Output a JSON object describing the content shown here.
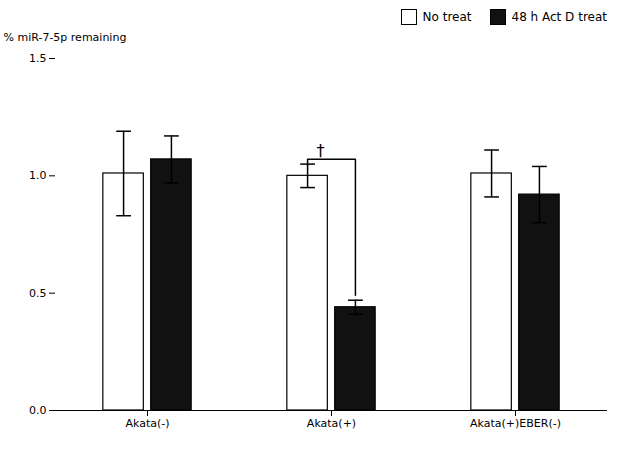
{
  "chart_data": {
    "type": "bar",
    "categories": [
      "Akata(-)",
      "Akata(+)",
      "Akata(+)EBER(-)"
    ],
    "series": [
      {
        "name": "No treat",
        "color": "#ffffff",
        "values": [
          1.01,
          1.0,
          1.01
        ],
        "errors": [
          0.18,
          0.05,
          0.1
        ]
      },
      {
        "name": "48 h Act D treat",
        "color": "#111111",
        "values": [
          1.07,
          0.44,
          0.92
        ],
        "errors": [
          0.1,
          0.03,
          0.12
        ]
      }
    ],
    "ylabel": "% miR-7-5p remaining",
    "ylim": [
      0.0,
      1.5
    ],
    "yticks": [
      {
        "value": 0.0,
        "label": "0.0"
      },
      0.5,
      {
        "value": 1.0,
        "label": "1.0"
      },
      1.5
    ],
    "grid": false,
    "legend": "upper right",
    "annotations": [
      {
        "text": "†",
        "category": "Akata(+)"
      }
    ]
  }
}
